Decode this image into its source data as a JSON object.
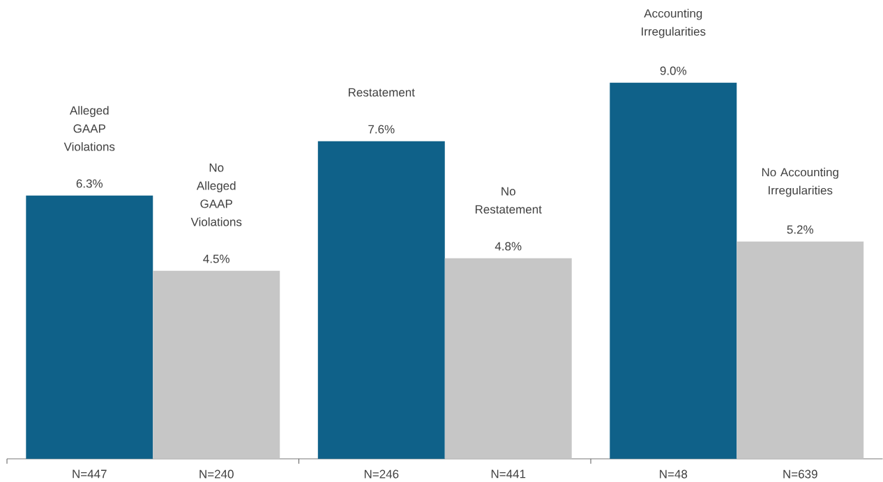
{
  "chart_data": {
    "type": "bar",
    "categories": [
      "N=447",
      "N=240",
      "N=246",
      "N=441",
      "N=48",
      "N=639"
    ],
    "values": [
      6.3,
      4.5,
      7.6,
      4.8,
      9.0,
      5.2
    ],
    "colors": [
      "#0f6189",
      "#c6c6c6",
      "#0f6189",
      "#c6c6c6",
      "#0f6189",
      "#c6c6c6"
    ],
    "value_labels": [
      "6.3%",
      "4.5%",
      "7.6%",
      "4.8%",
      "9.0%",
      "5.2%"
    ],
    "annotations": [
      "Alleged GAAP Violations",
      "No Alleged GAAP Violations",
      "Restatement",
      "No Restatement",
      "Accounting Irregularities",
      "No Accounting Irregularities"
    ]
  }
}
